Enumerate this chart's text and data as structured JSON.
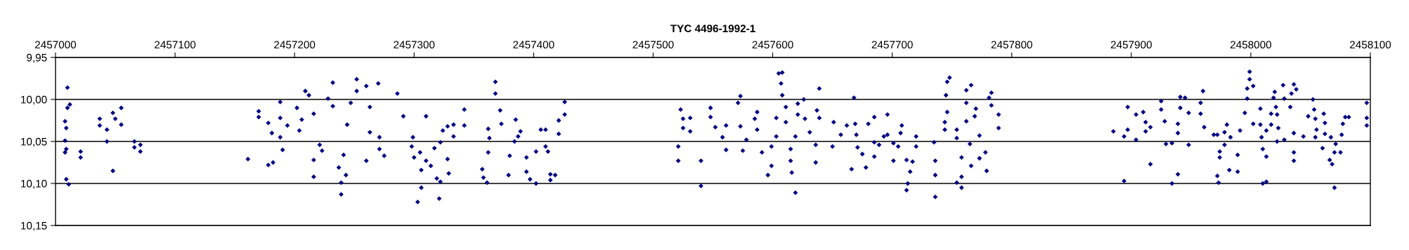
{
  "chart_data": {
    "type": "scatter",
    "title": "TYC 4496-1992-1",
    "xlim": [
      2457000,
      2458100
    ],
    "xticks": [
      2457000,
      2457100,
      2457200,
      2457300,
      2457400,
      2457500,
      2457600,
      2457700,
      2457800,
      2457900,
      2458000,
      2458100
    ],
    "ylim": [
      10.15,
      9.95
    ],
    "yticks": [
      {
        "value": 9.95,
        "label": "9,95"
      },
      {
        "value": 10.0,
        "label": "10,00"
      },
      {
        "value": 10.05,
        "label": "10,05"
      },
      {
        "value": 10.1,
        "label": "10,10"
      },
      {
        "value": 10.15,
        "label": "10,15"
      }
    ],
    "grid": "y",
    "marker": "diamond",
    "series": [
      {
        "color": "#000080",
        "x": [
          2457010,
          2457010,
          2457008,
          2457012,
          2457009,
          2457008,
          2457008,
          2457009,
          2457009,
          2457011,
          2457021,
          2457021,
          2457037,
          2457037,
          2457043,
          2457043,
          2457048,
          2457048,
          2457050,
          2457055,
          2457055,
          2457066,
          2457066,
          2457071,
          2457071,
          2457161,
          2457170,
          2457170,
          2457178,
          2457178,
          2457181,
          2457182,
          2457188,
          2457188,
          2457188,
          2457190,
          2457194,
          2457202,
          2457204,
          2457206,
          2457209,
          2457212,
          2457216,
          2457216,
          2457216,
          2457221,
          2457223,
          2457228,
          2457232,
          2457232,
          2457237,
          2457239,
          2457239,
          2457241,
          2457243,
          2457244,
          2457247,
          2457252,
          2457252,
          2457260,
          2457260,
          2457263,
          2457263,
          2457270,
          2457271,
          2457271,
          2457275,
          2457286,
          2457291,
          2457298,
          2457299,
          2457300,
          2457303,
          2457306,
          2457306,
          2457305,
          2457310,
          2457310,
          2457314,
          2457317,
          2457319,
          2457321,
          2457322,
          2457322,
          2457324,
          2457328,
          2457328,
          2457329,
          2457333,
          2457333,
          2457342,
          2457342,
          2457357,
          2457358,
          2457361,
          2457362,
          2457363,
          2457362,
          2457368,
          2457368,
          2457372,
          2457373,
          2457379,
          2457380,
          2457384,
          2457385,
          2457387,
          2457389,
          2457394,
          2457394,
          2457397,
          2457402,
          2457402,
          2457406,
          2457410,
          2457410,
          2457412,
          2457414,
          2457414,
          2457418,
          2457421,
          2457421,
          2457426,
          2457426,
          2457521,
          2457521,
          2457523,
          2457525,
          2457525,
          2457531,
          2457531,
          2457540,
          2457540,
          2457548,
          2457548,
          2457552,
          2457558,
          2457561,
          2457561,
          2457571,
          2457573,
          2457573,
          2457575,
          2457578,
          2457585,
          2457587,
          2457587,
          2457591,
          2457596,
          2457599,
          2457599,
          2457603,
          2457603,
          2457605,
          2457608,
          2457607,
          2457608,
          2457611,
          2457611,
          2457615,
          2457615,
          2457616,
          2457619,
          2457619,
          2457621,
          2457621,
          2457626,
          2457627,
          2457631,
          2457636,
          2457636,
          2457637,
          2457639,
          2457639,
          2457651,
          2457650,
          2457657,
          2457662,
          2457666,
          2457668,
          2457669,
          2457670,
          2457671,
          2457675,
          2457678,
          2457680,
          2457685,
          2457685,
          2457685,
          2457689,
          2457693,
          2457696,
          2457696,
          2457701,
          2457701,
          2457705,
          2457708,
          2457707,
          2457712,
          2457713,
          2457712,
          2457715,
          2457717,
          2457720,
          2457720,
          2457735,
          2457736,
          2457736,
          2457736,
          2457744,
          2457744,
          2457746,
          2457748,
          2457745,
          2457746,
          2457754,
          2457754,
          2457754,
          2457758,
          2457758,
          2457758,
          2457762,
          2457762,
          2457762,
          2457766,
          2457765,
          2457766,
          2457769,
          2457770,
          2457773,
          2457773,
          2457778,
          2457779,
          2457781,
          2457783,
          2457783,
          2457789,
          2457789,
          2457885,
          2457894,
          2457894,
          2457897,
          2457897,
          2457904,
          2457904,
          2457910,
          2457912,
          2457912,
          2457916,
          2457916,
          2457925,
          2457925,
          2457928,
          2457929,
          2457934,
          2457934,
          2457939,
          2457939,
          2457939,
          2457941,
          2457941,
          2457945,
          2457948,
          2457948,
          2457960,
          2457958,
          2457958,
          2457961,
          2457969,
          2457972,
          2457972,
          2457973,
          2457974,
          2457974,
          2457978,
          2457978,
          2457980,
          2457982,
          2457983,
          2457989,
          2457989,
          2457991,
          2457995,
          2457997,
          2457997,
          2457999,
          2457999,
          2458002,
          2458002,
          2458008,
          2458008,
          2458009,
          2458010,
          2458010,
          2458013,
          2458013,
          2458013,
          2458017,
          2458017,
          2458019,
          2458020,
          2458021,
          2458022,
          2458022,
          2458023,
          2458027,
          2458028,
          2458028,
          2458033,
          2458034,
          2458036,
          2458038,
          2458036,
          2458036,
          2458036,
          2458044,
          2458048,
          2458052,
          2458053,
          2458054,
          2458054,
          2458055,
          2458060,
          2458061,
          2458062,
          2458062,
          2458066,
          2458067,
          2458068,
          2458070,
          2458070,
          2458071,
          2458075,
          2458076,
          2458077,
          2458079,
          2458082,
          2458097,
          2458097,
          2458097
        ],
        "values": [
          9.986,
          10.01,
          10.026,
          10.006,
          10.034,
          10.049,
          10.063,
          10.059,
          10.095,
          10.101,
          10.062,
          10.069,
          10.023,
          10.031,
          10.036,
          10.05,
          10.016,
          10.085,
          10.023,
          10.01,
          10.03,
          10.05,
          10.057,
          10.054,
          10.062,
          10.071,
          10.014,
          10.021,
          10.028,
          10.078,
          10.04,
          10.075,
          10.003,
          10.022,
          10.045,
          10.06,
          10.031,
          10.01,
          10.037,
          10.024,
          9.99,
          9.995,
          10.017,
          10.072,
          10.092,
          10.054,
          10.061,
          9.999,
          9.98,
          10.008,
          10.081,
          10.099,
          10.113,
          10.066,
          10.09,
          10.03,
          10.004,
          9.976,
          9.99,
          9.984,
          10.073,
          10.009,
          10.039,
          9.981,
          10.045,
          10.059,
          10.067,
          9.993,
          10.02,
          10.056,
          10.045,
          10.069,
          10.122,
          10.105,
          10.084,
          10.063,
          10.02,
          10.073,
          10.079,
          10.058,
          10.094,
          10.118,
          10.098,
          10.051,
          10.037,
          10.032,
          10.071,
          10.088,
          10.03,
          10.044,
          10.012,
          10.031,
          10.083,
          10.093,
          10.099,
          10.035,
          10.046,
          10.063,
          9.979,
          9.993,
          10.013,
          10.029,
          10.09,
          10.067,
          10.05,
          10.024,
          10.044,
          10.038,
          10.069,
          10.086,
          10.095,
          10.1,
          10.062,
          10.036,
          10.036,
          10.056,
          10.062,
          10.089,
          10.096,
          10.09,
          10.025,
          10.041,
          10.003,
          10.018,
          10.056,
          10.073,
          10.012,
          10.034,
          10.023,
          10.038,
          10.022,
          10.073,
          10.103,
          10.01,
          10.021,
          10.033,
          10.045,
          10.031,
          10.06,
          10.004,
          9.996,
          10.032,
          10.061,
          10.048,
          10.023,
          10.015,
          10.036,
          10.063,
          10.09,
          10.079,
          10.056,
          10.022,
          10.044,
          9.969,
          9.968,
          9.981,
          9.995,
          10.009,
          10.027,
          10.059,
          10.073,
          10.087,
          10.111,
          10.044,
          10.005,
          10.018,
          10.0,
          10.023,
          10.039,
          10.054,
          10.075,
          10.013,
          9.987,
          10.022,
          10.027,
          10.056,
          10.042,
          10.031,
          10.083,
          9.998,
          10.029,
          10.042,
          10.057,
          10.065,
          10.081,
          10.029,
          10.021,
          10.068,
          10.051,
          10.054,
          10.044,
          10.018,
          10.042,
          10.073,
          10.052,
          10.056,
          10.031,
          10.04,
          10.072,
          10.1,
          10.108,
          10.086,
          10.074,
          10.044,
          10.056,
          10.051,
          10.073,
          10.09,
          10.116,
          10.027,
          10.036,
          9.979,
          9.974,
          9.995,
          10.015,
          10.036,
          10.046,
          10.099,
          10.105,
          10.069,
          10.092,
          10.004,
          9.989,
          10.026,
          9.983,
          10.053,
          10.079,
          10.02,
          10.011,
          10.043,
          10.07,
          10.063,
          10.085,
          9.998,
          9.992,
          10.007,
          10.018,
          10.034,
          10.038,
          10.044,
          10.097,
          10.009,
          10.036,
          10.018,
          10.048,
          10.015,
          10.027,
          10.038,
          10.033,
          10.077,
          10.002,
          10.012,
          10.026,
          10.053,
          10.052,
          10.1,
          10.029,
          10.04,
          10.089,
          9.997,
          10.01,
          9.998,
          10.016,
          10.054,
          9.99,
          10.004,
          10.017,
          10.033,
          10.042,
          10.042,
          10.091,
          10.099,
          10.062,
          10.069,
          10.039,
          10.054,
          10.03,
          10.084,
          10.045,
          10.066,
          10.086,
          10.037,
          10.016,
          9.999,
          9.987,
          9.967,
          9.976,
          9.984,
          10.029,
          10.011,
          10.03,
          10.045,
          10.059,
          10.1,
          10.098,
          10.068,
          10.037,
          10.017,
          10.03,
          9.998,
          9.991,
          10.009,
          10.018,
          10.05,
          10.034,
          9.983,
          9.999,
          10.048,
          10.009,
          9.993,
          9.982,
          9.988,
          10.04,
          10.063,
          10.073,
          10.044,
          10.02,
          10.0,
          10.012,
          10.023,
          10.045,
          10.036,
          10.058,
          10.017,
          10.028,
          10.041,
          10.072,
          10.045,
          10.077,
          10.105,
          10.063,
          10.053,
          10.063,
          10.042,
          10.029,
          10.021,
          10.021,
          10.004,
          10.022,
          10.031
        ]
      }
    ]
  }
}
